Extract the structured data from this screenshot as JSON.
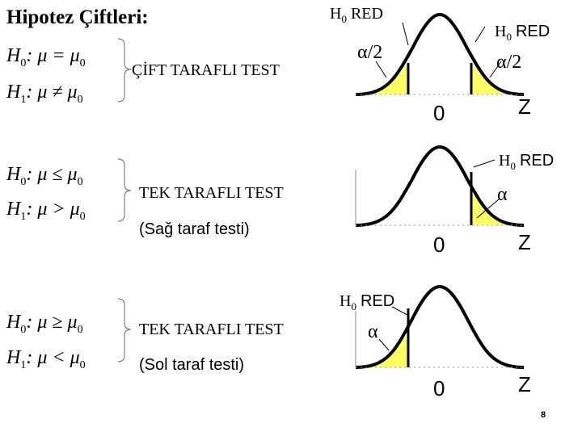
{
  "title": "Hipotez Çiftleri:",
  "blocks": [
    {
      "h0": {
        "lhs": "H",
        "sub": "0",
        "rel": ": μ = μ",
        "sub2": "0"
      },
      "h1": {
        "lhs": "H",
        "sub": "1",
        "rel": ": μ ≠ μ",
        "sub2": "0"
      },
      "test_label": "ÇİFT TARAFLI TEST",
      "sub_label": ""
    },
    {
      "h0": {
        "lhs": "H",
        "sub": "0",
        "rel": ": μ ≤ μ",
        "sub2": "0"
      },
      "h1": {
        "lhs": "H",
        "sub": "1",
        "rel": ": μ > μ",
        "sub2": "0"
      },
      "test_label": "TEK TARAFLI TEST",
      "sub_label": "(Sağ taraf testi)"
    },
    {
      "h0": {
        "lhs": "H",
        "sub": "0",
        "rel": ": μ ≥ μ",
        "sub2": "0"
      },
      "h1": {
        "lhs": "H",
        "sub": "1",
        "rel": ": μ < μ",
        "sub2": "0"
      },
      "test_label": "TEK TARAFLI TEST",
      "sub_label": "(Sol taraf testi)"
    }
  ],
  "graphs": {
    "g1": {
      "red_left": "RED",
      "red_right": "RED",
      "h_letter": "H",
      "h_sub": "0",
      "alpha_left": "α/2",
      "alpha_right": "α/2",
      "zero": "0",
      "z": "Z"
    },
    "g2": {
      "red_right": "RED",
      "h_letter": "H",
      "h_sub": "0",
      "alpha_right": "α",
      "zero": "0",
      "z": "Z"
    },
    "g3": {
      "red_left": "RED",
      "h_letter": "H",
      "h_sub": "0",
      "alpha_left": "α",
      "zero": "0",
      "z": "Z"
    }
  },
  "page_number": "8",
  "colors": {
    "tail_fill": "#ffff66",
    "curve": "#000000"
  }
}
